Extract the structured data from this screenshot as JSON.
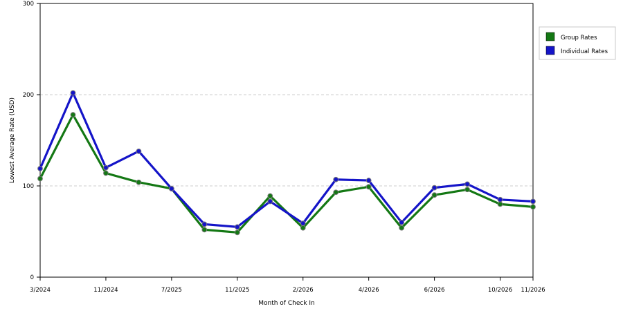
{
  "chart_data": {
    "type": "line",
    "title": "",
    "xlabel": "Month of Check In",
    "ylabel": "Lowest Average Rate (USD)",
    "ylim": [
      0,
      300
    ],
    "yticks": [
      0,
      100,
      200,
      300
    ],
    "x_tick_labels": [
      "3/2024",
      "11/2024",
      "7/2025",
      "11/2025",
      "2/2026",
      "4/2026",
      "6/2026",
      "10/2026",
      "11/2026"
    ],
    "grid": "horizontal dashed",
    "legend_position": "right",
    "series": [
      {
        "name": "Group Rates",
        "color": "#147814",
        "values": [
          108,
          178,
          114,
          104,
          97,
          52,
          49,
          89,
          54,
          93,
          99,
          54,
          90,
          96,
          80,
          77
        ]
      },
      {
        "name": "Individual Rates",
        "color": "#1414c8",
        "values": [
          119,
          202,
          120,
          138,
          97,
          58,
          55,
          83,
          59,
          107,
          106,
          60,
          98,
          102,
          85,
          83
        ]
      }
    ]
  }
}
